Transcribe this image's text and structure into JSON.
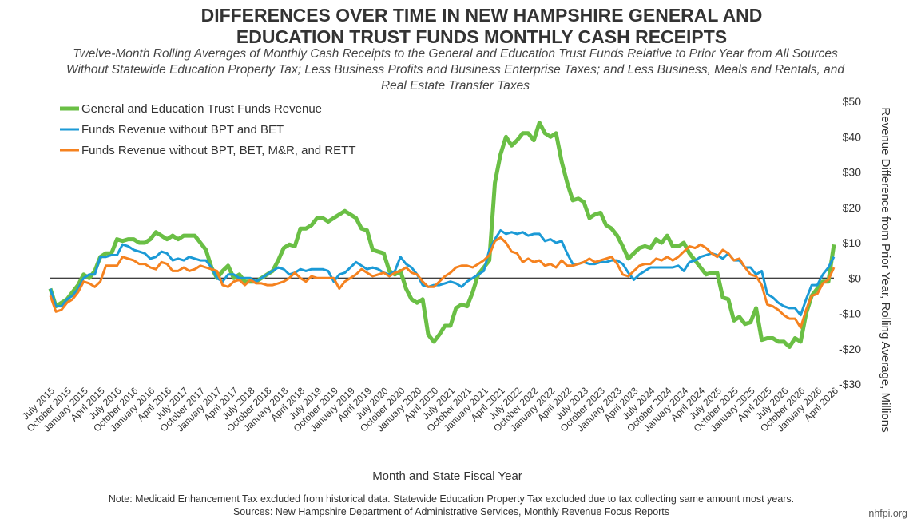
{
  "chart_data": {
    "type": "line",
    "title": "DIFFERENCES OVER TIME IN NEW HAMPSHIRE GENERAL AND EDUCATION TRUST FUNDS MONTHLY CASH RECEIPTS",
    "subtitle": "Twelve-Month Rolling Averages of Monthly Cash Receipts to the General and Education Trust Funds Relative to Prior Year from All Sources Without Statewide Education Property Tax; Less Business Profits and Business Enterprise Taxes; and Less Business, Meals and Rentals, and Real Estate Transfer Taxes",
    "x_label": "Month and State Fiscal Year",
    "y_label": "Revenue Difference from Prior Year, Rolling Average, Millions",
    "note": "Note: Medicaid Enhancement Tax excluded from historical data. Statewide Education Property Tax excluded due to tax collecting same amount most years.",
    "source": "Sources: New Hampshire Department of Administrative Services, Monthly Revenue Focus Reports",
    "credit": "nhfpi.org",
    "categories": [
      "July 2015",
      null,
      null,
      "October 2015",
      null,
      null,
      "January 2015",
      null,
      null,
      "April 2015",
      null,
      null,
      "July 2016",
      null,
      null,
      "October 2016",
      null,
      null,
      "January 2016",
      null,
      null,
      "April 2016",
      null,
      null,
      "July 2017",
      null,
      null,
      "October 2017",
      null,
      null,
      "January 2017",
      null,
      null,
      "April 2017",
      null,
      null,
      "July 2018",
      null,
      null,
      "October 2018",
      null,
      null,
      "January 2018",
      null,
      null,
      "April 2018",
      null,
      null,
      "July 2019",
      null,
      null,
      "October 2019",
      null,
      null,
      "January 2019",
      null,
      null,
      "April 2019",
      null,
      null,
      "July 2020",
      null,
      null,
      "October 2020",
      null,
      null,
      "January 2020",
      null,
      null,
      "April 2020",
      null,
      null,
      "July 2021",
      null,
      null,
      "October 2021",
      null,
      null,
      "January 2021",
      null,
      null,
      "April 2021",
      null,
      null,
      "July 2022",
      null,
      null,
      "October 2022",
      null,
      null,
      "January 2022",
      null,
      null,
      "April 2022",
      null,
      null,
      "July 2023",
      null,
      null,
      "October 2023",
      null,
      null,
      "January 2023",
      null,
      null,
      "April 2023",
      null,
      null,
      "July 2024",
      null,
      null,
      "October 2024",
      null,
      null,
      "January 2024",
      null,
      null,
      "April 2024",
      null,
      null,
      "July 2025",
      null,
      null,
      "October 2025",
      null,
      null,
      "January 2025",
      null,
      null,
      "April 2025",
      null,
      null,
      "July 2026",
      null,
      null,
      "October 2026",
      null,
      null,
      "January 2026",
      null,
      null,
      "April 2026"
    ],
    "series": [
      {
        "name": "General and Education Trust Funds Revenue",
        "color": "#6abf45",
        "width": 5,
        "values": [
          -3,
          -8,
          -7,
          -6,
          -4,
          -2,
          1,
          0,
          2,
          6,
          7,
          7,
          11,
          10.5,
          11,
          11,
          10,
          10,
          11,
          13,
          12,
          11,
          12,
          11,
          12,
          12,
          12,
          10,
          8,
          3,
          0,
          2,
          3.5,
          0,
          1,
          -1,
          -1,
          -1,
          0,
          1,
          2,
          5,
          8.5,
          9.5,
          9,
          14,
          14,
          15,
          17,
          17,
          16,
          17,
          18,
          19,
          18,
          17,
          14,
          13.5,
          8,
          7.5,
          7,
          2,
          1,
          2,
          -3,
          -6,
          -7,
          -6,
          -16,
          -18,
          -16,
          -13.5,
          -13.5,
          -8.5,
          -7.5,
          -8,
          -4,
          1,
          3,
          5,
          27,
          35,
          40,
          37.5,
          39,
          41,
          41,
          39,
          44,
          41,
          40,
          41,
          33,
          27,
          22,
          22.5,
          21.5,
          17,
          18,
          18.5,
          15,
          14,
          12,
          9,
          5.5,
          7,
          8.5,
          9,
          8.5,
          11,
          10,
          12,
          9,
          9,
          10,
          7,
          5,
          3,
          1,
          1.5,
          1.5,
          -5.5,
          -6,
          -12,
          -11,
          -13,
          -12.5,
          -8.5,
          -17.5,
          -17,
          -17,
          -18,
          -18,
          -19.5,
          -17,
          -18,
          -10,
          -5,
          -3,
          -1,
          -1,
          9.5
        ]
      },
      {
        "name": "Funds Revenue without BPT and BET",
        "color": "#1b9ad6",
        "width": 3,
        "values": [
          -3,
          -8,
          -8,
          -6,
          -5,
          -3,
          0,
          1,
          1,
          6,
          6,
          6.5,
          6.5,
          9.5,
          9,
          8,
          7.5,
          7,
          5.5,
          6,
          7.5,
          7,
          5,
          5.5,
          5,
          6,
          5.5,
          5,
          5,
          3,
          0,
          -1,
          1,
          1,
          0,
          0,
          0,
          -1,
          0,
          1,
          2,
          3,
          2.5,
          1,
          1.5,
          2.5,
          2,
          2.5,
          2.5,
          2.5,
          2,
          -1,
          1,
          1.5,
          3,
          4.5,
          3.5,
          2.5,
          3,
          2.5,
          1.5,
          1,
          2,
          6,
          4,
          3,
          1,
          -2,
          -2.5,
          -2,
          -2,
          -1.5,
          -1,
          -1.5,
          -2.5,
          -1,
          0,
          1,
          2,
          8,
          11,
          13.5,
          12.5,
          13,
          12.5,
          13,
          12,
          12.5,
          12.5,
          10.5,
          11,
          10,
          10.5,
          7,
          4,
          4,
          4.5,
          4,
          4,
          4.5,
          4.5,
          5,
          5,
          4,
          1.5,
          -0.5,
          1,
          2,
          3,
          3,
          3,
          3,
          3,
          3.5,
          2,
          4.5,
          5,
          6,
          6.5,
          7,
          6.5,
          5.5,
          7,
          5,
          5,
          3,
          3,
          1,
          2,
          -4.5,
          -5.5,
          -7,
          -8,
          -8.5,
          -8.5,
          -10.5,
          -6,
          -2,
          -2,
          1,
          3,
          6
        ]
      },
      {
        "name": "Funds Revenue without BPT, BET, M&R, and RETT",
        "color": "#f5821f",
        "width": 3,
        "values": [
          -5,
          -9.5,
          -9,
          -7,
          -6,
          -4,
          -1,
          -1.5,
          -2.5,
          -1,
          3.5,
          3.5,
          3.5,
          6,
          5.5,
          5,
          4,
          4,
          3,
          2.5,
          4.5,
          4,
          2,
          2,
          3,
          2,
          2.5,
          3.5,
          3,
          2.5,
          2,
          -2,
          -2.5,
          -1,
          -0.5,
          -2,
          -0.5,
          -1.5,
          -1.5,
          -2,
          -2,
          -1.5,
          -1,
          0,
          1.5,
          0,
          -1,
          0.5,
          0,
          0,
          0,
          0,
          -3,
          -1,
          0,
          1,
          2.5,
          1.5,
          0.5,
          1,
          1.5,
          0.5,
          1.5,
          2,
          3,
          1.5,
          1,
          -1,
          -2.5,
          -2.5,
          -1,
          0.5,
          1.5,
          3,
          3.5,
          3.5,
          3,
          4,
          5,
          6.5,
          10.5,
          11.5,
          10,
          7.5,
          7,
          4.5,
          5.5,
          4.5,
          5,
          3.5,
          4,
          3,
          5,
          3.5,
          3.5,
          4,
          4.5,
          5.5,
          4.5,
          5,
          5.5,
          6,
          4,
          1,
          0.5,
          2,
          3.5,
          4,
          4,
          5.5,
          5,
          6,
          5,
          6,
          7.5,
          9,
          8.5,
          9.5,
          8.5,
          7,
          6,
          8,
          7,
          5,
          5.5,
          3,
          1,
          0.5,
          -2,
          -7.5,
          -8,
          -9,
          -10.5,
          -11.5,
          -11.5,
          -14,
          -9,
          -5,
          -4.5,
          -1.5,
          -0.5,
          3
        ]
      }
    ],
    "ylim": [
      -30,
      50
    ],
    "yticks": [
      {
        "value": -30,
        "label": "-$30"
      },
      {
        "value": -20,
        "label": "-$20"
      },
      {
        "value": -10,
        "label": "-$10"
      },
      {
        "value": 0,
        "label": "$0"
      },
      {
        "value": 10,
        "label": "$10"
      },
      {
        "value": 20,
        "label": "$20"
      },
      {
        "value": 30,
        "label": "$30"
      },
      {
        "value": 40,
        "label": "$40"
      },
      {
        "value": 50,
        "label": "$50"
      }
    ],
    "legend": "top-left"
  }
}
